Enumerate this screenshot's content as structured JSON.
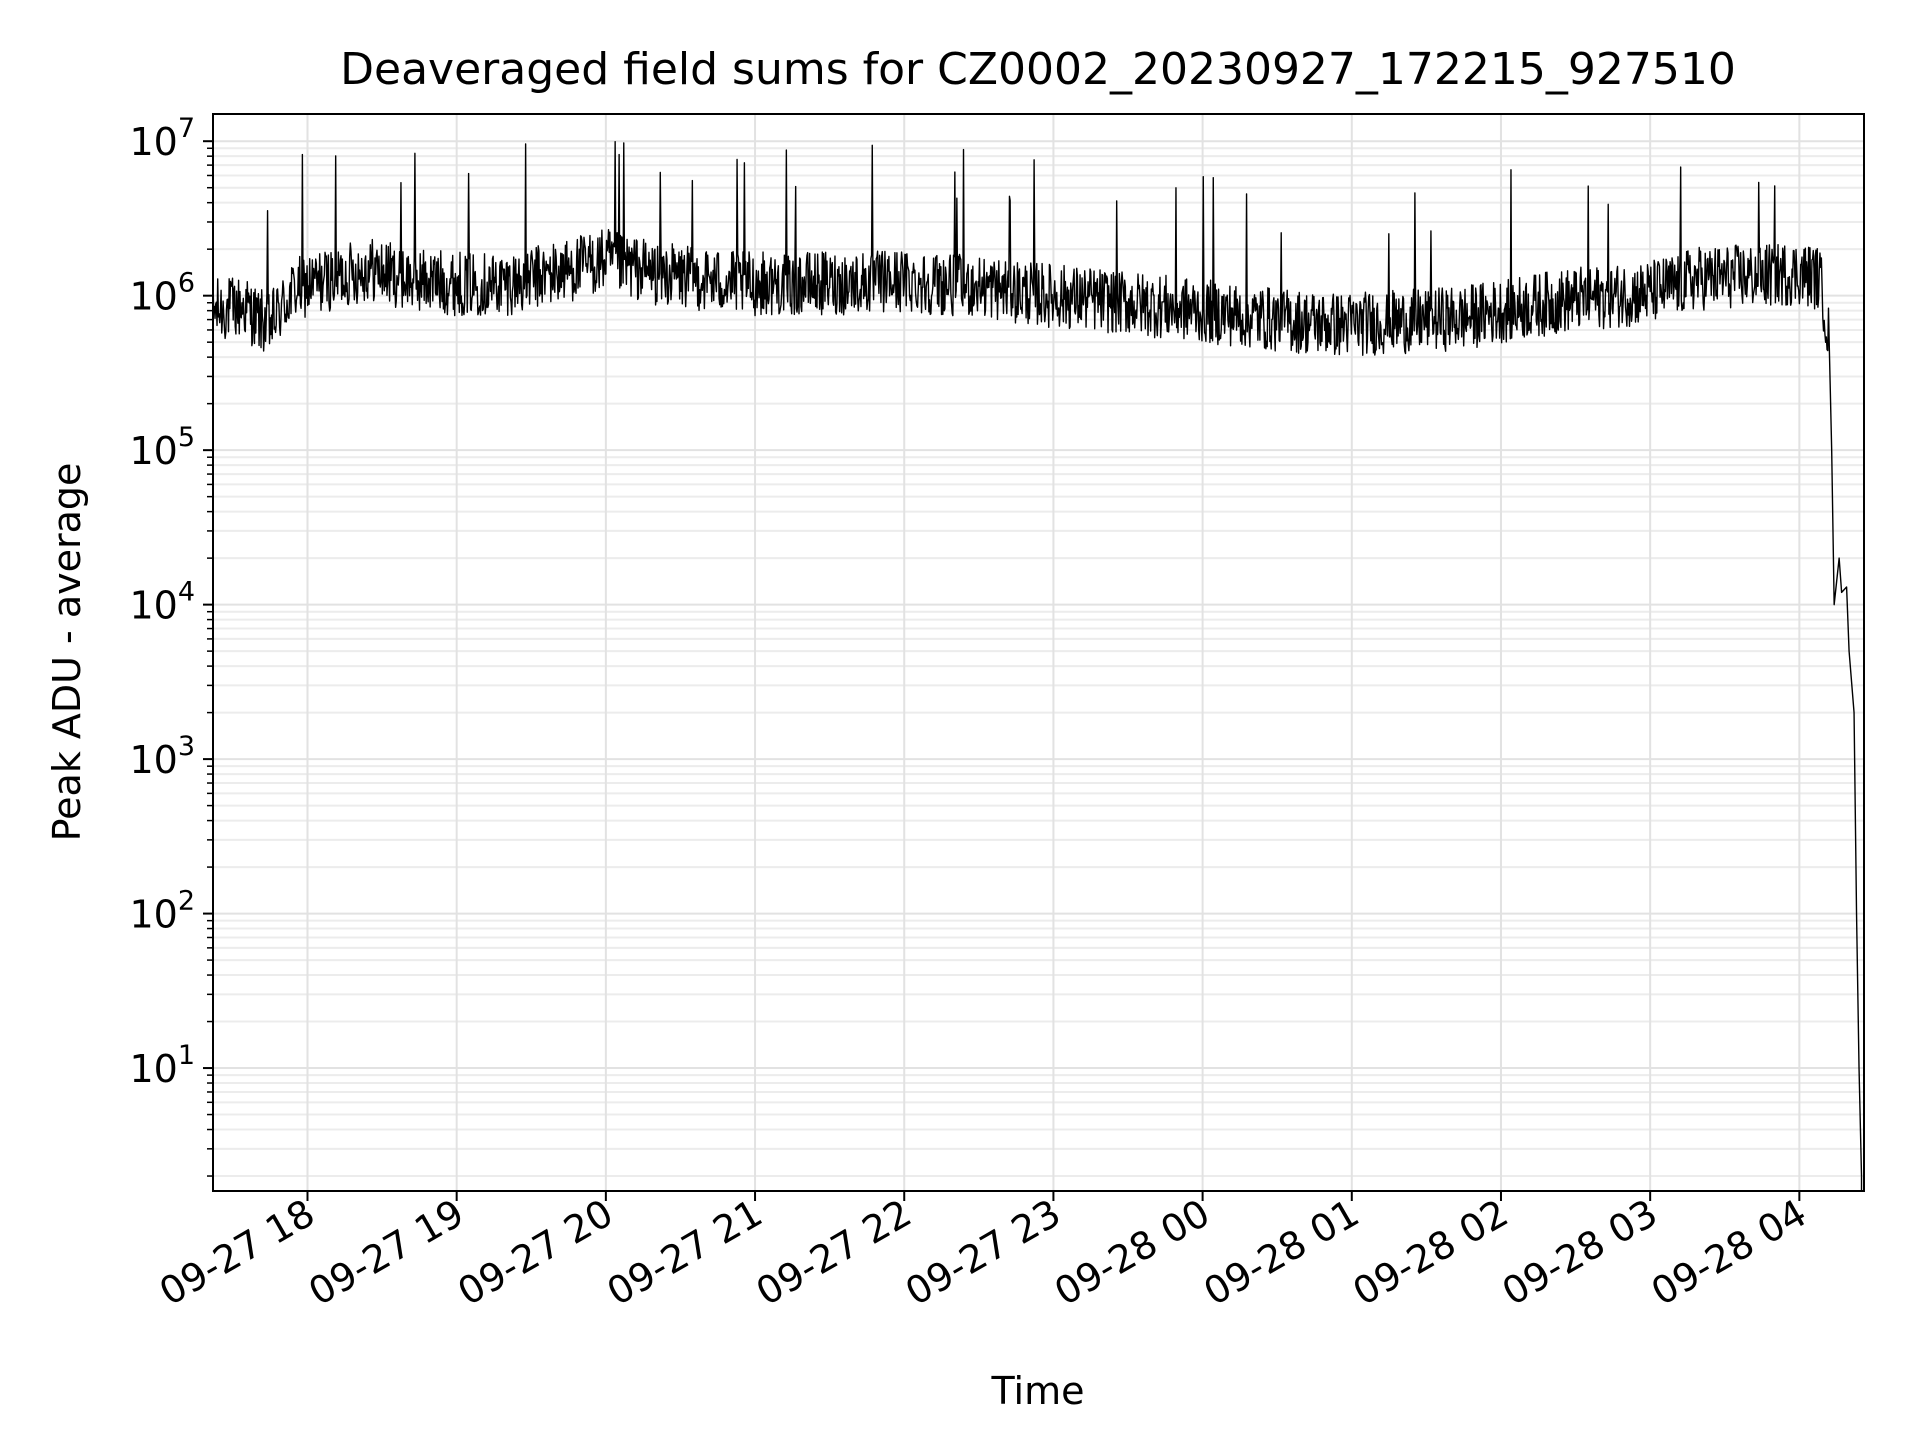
{
  "chart_data": {
    "type": "line",
    "title": "Deaveraged field sums for CZ0002_20230927_172215_927510",
    "xlabel": "Time",
    "ylabel": "Peak ADU - average",
    "yscale": "log",
    "ylim": [
      1.6,
      15000000
    ],
    "xlim": [
      "2023-09-27 17:22",
      "2023-09-28 04:26"
    ],
    "grid": true,
    "x_ticks": [
      "2023-09-27 18:00",
      "2023-09-27 19:00",
      "2023-09-27 20:00",
      "2023-09-27 21:00",
      "2023-09-27 22:00",
      "2023-09-27 23:00",
      "2023-09-28 00:00",
      "2023-09-28 01:00",
      "2023-09-28 02:00",
      "2023-09-28 03:00",
      "2023-09-28 04:00"
    ],
    "x_tick_labels": [
      "09-27 18",
      "09-27 19",
      "09-27 20",
      "09-27 21",
      "09-27 22",
      "09-27 23",
      "09-28 00",
      "09-28 01",
      "09-28 02",
      "09-28 03",
      "09-28 04"
    ],
    "y_ticks": [
      10,
      100,
      1000,
      10000,
      100000,
      1000000,
      10000000
    ],
    "y_tick_labels": [
      {
        "base": "10",
        "exp": "1"
      },
      {
        "base": "10",
        "exp": "2"
      },
      {
        "base": "10",
        "exp": "3"
      },
      {
        "base": "10",
        "exp": "4"
      },
      {
        "base": "10",
        "exp": "5"
      },
      {
        "base": "10",
        "exp": "6"
      },
      {
        "base": "10",
        "exp": "7"
      }
    ],
    "series": [
      {
        "line_color": "#000000",
        "x": [
          "2023-09-27 17:22",
          "2023-09-27 17:35",
          "2023-09-27 17:40",
          "2023-09-27 17:45",
          "2023-09-27 17:55",
          "2023-09-27 18:10",
          "2023-09-27 18:25",
          "2023-09-27 18:40",
          "2023-09-27 19:00",
          "2023-09-27 19:20",
          "2023-09-27 19:40",
          "2023-09-27 20:00",
          "2023-09-27 20:20",
          "2023-09-27 20:45",
          "2023-09-27 21:00",
          "2023-09-27 21:30",
          "2023-09-27 22:00",
          "2023-09-27 22:30",
          "2023-09-27 23:00",
          "2023-09-27 23:30",
          "2023-09-28 00:00",
          "2023-09-28 00:30",
          "2023-09-28 00:55",
          "2023-09-28 01:20",
          "2023-09-28 01:45",
          "2023-09-28 02:00",
          "2023-09-28 02:30",
          "2023-09-28 03:00",
          "2023-09-28 03:20",
          "2023-09-28 03:45",
          "2023-09-28 04:00",
          "2023-09-28 04:08",
          "2023-09-28 04:10",
          "2023-09-28 04:12",
          "2023-09-28 04:13",
          "2023-09-28 04:14",
          "2023-09-28 04:16",
          "2023-09-28 04:17",
          "2023-09-28 04:19",
          "2023-09-28 04:20",
          "2023-09-28 04:22",
          "2023-09-28 04:23",
          "2023-09-28 04:24",
          "2023-09-28 04:25"
        ],
        "y": [
          800000,
          850000,
          700000,
          650000,
          1100000,
          1300000,
          1500000,
          1300000,
          1200000,
          1200000,
          1400000,
          1700000,
          1400000,
          1250000,
          1200000,
          1200000,
          1250000,
          1150000,
          1000000,
          900000,
          800000,
          700000,
          650000,
          680000,
          720000,
          800000,
          950000,
          1050000,
          1300000,
          1350000,
          1400000,
          1300000,
          900000,
          500000,
          100000,
          10000,
          20000,
          12000,
          13000,
          5000,
          2000,
          100,
          10,
          2
        ]
      }
    ]
  }
}
